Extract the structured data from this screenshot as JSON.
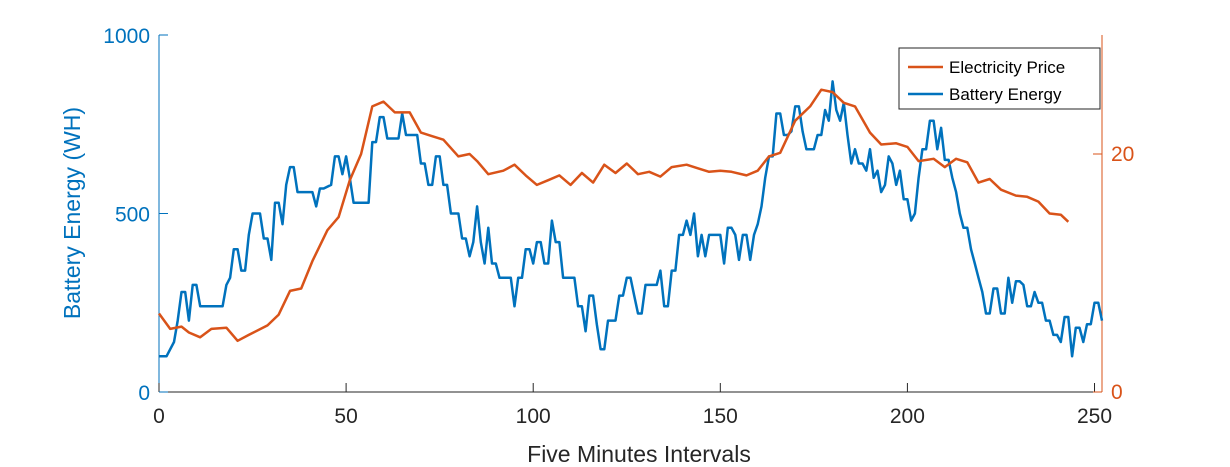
{
  "chart_data": {
    "type": "line",
    "xlabel": "Five Minutes Intervals",
    "ylabel_left": "Battery Energy (WH)",
    "xlim": [
      0,
      252
    ],
    "ylim_left": [
      0,
      1000
    ],
    "ylim_right": [
      0,
      30
    ],
    "x_ticks": [
      0,
      50,
      100,
      150,
      200,
      250
    ],
    "y_ticks_left": [
      0,
      500,
      1000
    ],
    "y_ticks_right": [
      0,
      20
    ],
    "grid": false,
    "legend_position": "top-right",
    "colors": {
      "left_axis": "#0072BD",
      "right_axis": "#D95319"
    },
    "series": [
      {
        "name": "Electricity Price",
        "axis": "right",
        "color": "#D95319",
        "points": [
          [
            0,
            6.6
          ],
          [
            3,
            5.3
          ],
          [
            6,
            5.5
          ],
          [
            8,
            5
          ],
          [
            11,
            4.6
          ],
          [
            14,
            5.3
          ],
          [
            18,
            5.4
          ],
          [
            21,
            4.3
          ],
          [
            24,
            4.8
          ],
          [
            29,
            5.6
          ],
          [
            32,
            6.5
          ],
          [
            35,
            8.5
          ],
          [
            38,
            8.7
          ],
          [
            41,
            11
          ],
          [
            45,
            13.6
          ],
          [
            48,
            14.7
          ],
          [
            51,
            17.8
          ],
          [
            54,
            20
          ],
          [
            57,
            24
          ],
          [
            60,
            24.4
          ],
          [
            63,
            23.5
          ],
          [
            67,
            23.5
          ],
          [
            70,
            21.8
          ],
          [
            73,
            21.5
          ],
          [
            76,
            21.2
          ],
          [
            80,
            19.8
          ],
          [
            83,
            20
          ],
          [
            85,
            19.4
          ],
          [
            88,
            18.3
          ],
          [
            92,
            18.6
          ],
          [
            95,
            19.1
          ],
          [
            98,
            18.2
          ],
          [
            101,
            17.4
          ],
          [
            104,
            17.8
          ],
          [
            107,
            18.2
          ],
          [
            110,
            17.4
          ],
          [
            113,
            18.4
          ],
          [
            116,
            17.6
          ],
          [
            119,
            19.1
          ],
          [
            122,
            18.4
          ],
          [
            125,
            19.2
          ],
          [
            128,
            18.3
          ],
          [
            131,
            18.5
          ],
          [
            134,
            18.1
          ],
          [
            137,
            18.9
          ],
          [
            141,
            19.1
          ],
          [
            144,
            18.8
          ],
          [
            147,
            18.5
          ],
          [
            150,
            18.6
          ],
          [
            153,
            18.5
          ],
          [
            157,
            18.2
          ],
          [
            160,
            18.6
          ],
          [
            163,
            19.8
          ],
          [
            166,
            20.1
          ],
          [
            170,
            22.8
          ],
          [
            174,
            24
          ],
          [
            177,
            25.4
          ],
          [
            180,
            25.2
          ],
          [
            183,
            24.3
          ],
          [
            186,
            24
          ],
          [
            190,
            21.8
          ],
          [
            193,
            20.8
          ],
          [
            197,
            20.9
          ],
          [
            200,
            20.6
          ],
          [
            203,
            19.4
          ],
          [
            207,
            19.6
          ],
          [
            210,
            18.9
          ],
          [
            213,
            19.6
          ],
          [
            216,
            19.3
          ],
          [
            219,
            17.6
          ],
          [
            222,
            17.9
          ],
          [
            225,
            17
          ],
          [
            229,
            16.5
          ],
          [
            232,
            16.4
          ],
          [
            235,
            16
          ],
          [
            238,
            15
          ],
          [
            241,
            14.9
          ],
          [
            243,
            14.3
          ]
        ]
      },
      {
        "name": "Battery Energy",
        "axis": "left",
        "color": "#0072BD",
        "points": [
          [
            0,
            100
          ],
          [
            2,
            100
          ],
          [
            4,
            140
          ],
          [
            5,
            200
          ],
          [
            6,
            280
          ],
          [
            7,
            280
          ],
          [
            8,
            200
          ],
          [
            9,
            300
          ],
          [
            10,
            300
          ],
          [
            11,
            240
          ],
          [
            12,
            240
          ],
          [
            13,
            240
          ],
          [
            15,
            240
          ],
          [
            17,
            240
          ],
          [
            18,
            300
          ],
          [
            19,
            320
          ],
          [
            20,
            400
          ],
          [
            21,
            400
          ],
          [
            22,
            340
          ],
          [
            23,
            340
          ],
          [
            24,
            440
          ],
          [
            25,
            500
          ],
          [
            26,
            500
          ],
          [
            27,
            500
          ],
          [
            28,
            430
          ],
          [
            29,
            430
          ],
          [
            30,
            370
          ],
          [
            31,
            530
          ],
          [
            32,
            530
          ],
          [
            33,
            470
          ],
          [
            34,
            580
          ],
          [
            35,
            630
          ],
          [
            36,
            630
          ],
          [
            37,
            560
          ],
          [
            38,
            560
          ],
          [
            39,
            560
          ],
          [
            41,
            560
          ],
          [
            42,
            520
          ],
          [
            43,
            570
          ],
          [
            44,
            570
          ],
          [
            46,
            580
          ],
          [
            47,
            660
          ],
          [
            48,
            660
          ],
          [
            49,
            610
          ],
          [
            50,
            660
          ],
          [
            51,
            600
          ],
          [
            52,
            530
          ],
          [
            53,
            530
          ],
          [
            54,
            530
          ],
          [
            56,
            530
          ],
          [
            57,
            700
          ],
          [
            58,
            700
          ],
          [
            59,
            770
          ],
          [
            60,
            770
          ],
          [
            61,
            710
          ],
          [
            62,
            710
          ],
          [
            64,
            710
          ],
          [
            65,
            780
          ],
          [
            66,
            720
          ],
          [
            67,
            720
          ],
          [
            69,
            720
          ],
          [
            70,
            640
          ],
          [
            71,
            640
          ],
          [
            72,
            580
          ],
          [
            73,
            580
          ],
          [
            74,
            660
          ],
          [
            75,
            660
          ],
          [
            76,
            580
          ],
          [
            77,
            580
          ],
          [
            78,
            500
          ],
          [
            80,
            500
          ],
          [
            81,
            430
          ],
          [
            82,
            430
          ],
          [
            83,
            380
          ],
          [
            84,
            420
          ],
          [
            85,
            520
          ],
          [
            86,
            420
          ],
          [
            87,
            360
          ],
          [
            88,
            460
          ],
          [
            89,
            360
          ],
          [
            90,
            360
          ],
          [
            91,
            320
          ],
          [
            92,
            320
          ],
          [
            94,
            320
          ],
          [
            95,
            240
          ],
          [
            96,
            320
          ],
          [
            97,
            320
          ],
          [
            98,
            400
          ],
          [
            99,
            400
          ],
          [
            100,
            360
          ],
          [
            101,
            420
          ],
          [
            102,
            420
          ],
          [
            103,
            360
          ],
          [
            104,
            360
          ],
          [
            105,
            480
          ],
          [
            106,
            420
          ],
          [
            107,
            420
          ],
          [
            108,
            320
          ],
          [
            109,
            320
          ],
          [
            111,
            320
          ],
          [
            112,
            240
          ],
          [
            113,
            240
          ],
          [
            114,
            170
          ],
          [
            115,
            270
          ],
          [
            116,
            270
          ],
          [
            117,
            190
          ],
          [
            118,
            120
          ],
          [
            119,
            120
          ],
          [
            120,
            200
          ],
          [
            121,
            200
          ],
          [
            122,
            200
          ],
          [
            123,
            270
          ],
          [
            124,
            270
          ],
          [
            125,
            320
          ],
          [
            126,
            320
          ],
          [
            127,
            270
          ],
          [
            128,
            220
          ],
          [
            129,
            220
          ],
          [
            130,
            300
          ],
          [
            131,
            300
          ],
          [
            133,
            300
          ],
          [
            134,
            340
          ],
          [
            135,
            240
          ],
          [
            136,
            240
          ],
          [
            137,
            340
          ],
          [
            138,
            340
          ],
          [
            139,
            440
          ],
          [
            140,
            440
          ],
          [
            141,
            480
          ],
          [
            142,
            440
          ],
          [
            143,
            500
          ],
          [
            144,
            380
          ],
          [
            145,
            440
          ],
          [
            146,
            380
          ],
          [
            147,
            440
          ],
          [
            148,
            440
          ],
          [
            150,
            440
          ],
          [
            151,
            360
          ],
          [
            152,
            460
          ],
          [
            153,
            460
          ],
          [
            154,
            440
          ],
          [
            155,
            370
          ],
          [
            156,
            440
          ],
          [
            157,
            440
          ],
          [
            158,
            370
          ],
          [
            159,
            440
          ],
          [
            160,
            470
          ],
          [
            161,
            520
          ],
          [
            162,
            600
          ],
          [
            163,
            660
          ],
          [
            164,
            660
          ],
          [
            165,
            780
          ],
          [
            166,
            780
          ],
          [
            167,
            720
          ],
          [
            168,
            720
          ],
          [
            169,
            730
          ],
          [
            170,
            800
          ],
          [
            171,
            800
          ],
          [
            172,
            730
          ],
          [
            173,
            680
          ],
          [
            174,
            680
          ],
          [
            175,
            680
          ],
          [
            176,
            720
          ],
          [
            177,
            720
          ],
          [
            178,
            790
          ],
          [
            179,
            760
          ],
          [
            180,
            870
          ],
          [
            181,
            790
          ],
          [
            182,
            760
          ],
          [
            183,
            810
          ],
          [
            184,
            720
          ],
          [
            185,
            640
          ],
          [
            186,
            680
          ],
          [
            187,
            640
          ],
          [
            188,
            640
          ],
          [
            189,
            620
          ],
          [
            190,
            680
          ],
          [
            191,
            600
          ],
          [
            192,
            620
          ],
          [
            193,
            560
          ],
          [
            194,
            580
          ],
          [
            195,
            660
          ],
          [
            196,
            640
          ],
          [
            197,
            580
          ],
          [
            198,
            620
          ],
          [
            199,
            540
          ],
          [
            200,
            540
          ],
          [
            201,
            480
          ],
          [
            202,
            500
          ],
          [
            203,
            600
          ],
          [
            204,
            680
          ],
          [
            205,
            680
          ],
          [
            206,
            760
          ],
          [
            207,
            760
          ],
          [
            208,
            680
          ],
          [
            209,
            740
          ],
          [
            210,
            650
          ],
          [
            211,
            650
          ],
          [
            212,
            600
          ],
          [
            213,
            560
          ],
          [
            214,
            500
          ],
          [
            215,
            460
          ],
          [
            216,
            460
          ],
          [
            217,
            400
          ],
          [
            218,
            360
          ],
          [
            219,
            320
          ],
          [
            220,
            280
          ],
          [
            221,
            220
          ],
          [
            222,
            220
          ],
          [
            223,
            290
          ],
          [
            224,
            290
          ],
          [
            225,
            220
          ],
          [
            226,
            220
          ],
          [
            227,
            320
          ],
          [
            228,
            250
          ],
          [
            229,
            310
          ],
          [
            230,
            310
          ],
          [
            231,
            300
          ],
          [
            232,
            240
          ],
          [
            233,
            240
          ],
          [
            234,
            280
          ],
          [
            235,
            250
          ],
          [
            236,
            250
          ],
          [
            237,
            200
          ],
          [
            238,
            200
          ],
          [
            239,
            160
          ],
          [
            240,
            160
          ],
          [
            241,
            140
          ],
          [
            242,
            210
          ],
          [
            243,
            210
          ],
          [
            244,
            100
          ],
          [
            245,
            180
          ],
          [
            246,
            180
          ],
          [
            247,
            140
          ],
          [
            248,
            190
          ],
          [
            249,
            190
          ],
          [
            250,
            250
          ],
          [
            251,
            250
          ],
          [
            252,
            200
          ]
        ]
      }
    ]
  }
}
